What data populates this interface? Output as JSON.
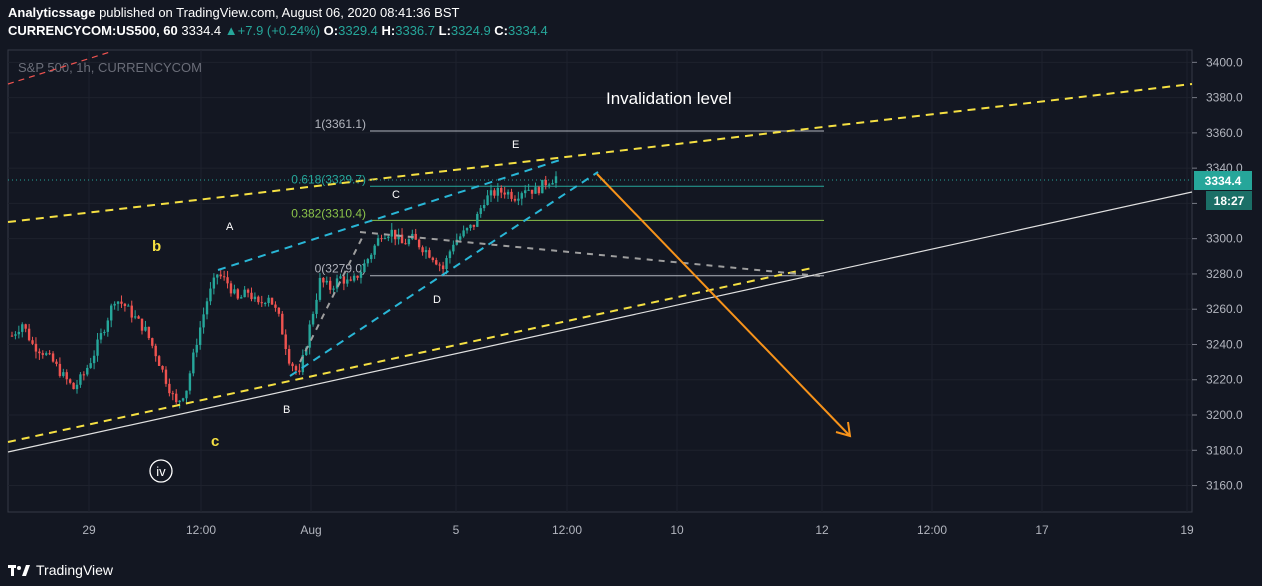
{
  "header": {
    "author": "Analyticssage",
    "published_text": "published on TradingView.com, August 06, 2020 08:41:36 BST",
    "symbol": "CURRENCYCOM:US500, 60",
    "last": "3334.4",
    "change": "+7.9 (+0.24%)",
    "o_label": "O:",
    "o_value": "3329.4",
    "h_label": "H:",
    "h_value": "3336.7",
    "l_label": "L:",
    "l_value": "3324.9",
    "c_label": "C:",
    "c_value": "3334.4"
  },
  "chart_data": {
    "type": "candlestick",
    "title": "S&P 500, 1h, CURRENCYCOM",
    "xlabel": "",
    "ylabel": "",
    "ylim": [
      3145,
      3407
    ],
    "y_ticks": [
      3160,
      3180,
      3200,
      3220,
      3240,
      3260,
      3280,
      3300,
      3320,
      3340,
      3360,
      3380,
      3400
    ],
    "y_tick_labels": [
      "3160.0",
      "3180.0",
      "3200.0",
      "3220.0",
      "3240.0",
      "3260.0",
      "3280.0",
      "3300.0",
      "3320.0",
      "3340.0",
      "3360.0",
      "3380.0",
      "3400.0"
    ],
    "x_tick_labels": [
      "29",
      "12:00",
      "Aug",
      "5",
      "12:00",
      "10",
      "12",
      "12:00",
      "17",
      "19"
    ],
    "price_label": "3334.4",
    "countdown_label": "18:27",
    "fib_levels": [
      {
        "label": "1(3361.1)",
        "value": 3361.1
      },
      {
        "label": "0.618(3329.7)",
        "value": 3329.7
      },
      {
        "label": "0.382(3310.4)",
        "value": 3310.4
      },
      {
        "label": "0(3279.0)",
        "value": 3279.0
      }
    ],
    "annotations": {
      "invalidation": "Invalidation level",
      "wave_A": "A",
      "wave_B": "B",
      "wave_C": "C",
      "wave_D": "D",
      "wave_E": "E",
      "wave_b": "b",
      "wave_c": "c",
      "wave_iv": "iv"
    },
    "path_points": [
      3245,
      3252,
      3240,
      3236,
      3230,
      3222,
      3215,
      3223,
      3235,
      3250,
      3266,
      3262,
      3255,
      3248,
      3235,
      3220,
      3206,
      3215,
      3242,
      3265,
      3280,
      3275,
      3265,
      3270,
      3262,
      3268,
      3255,
      3232,
      3222,
      3250,
      3276,
      3272,
      3278,
      3274,
      3282,
      3292,
      3303,
      3304,
      3297,
      3300,
      3295,
      3290,
      3283,
      3298,
      3303,
      3308,
      3322,
      3326,
      3327,
      3324,
      3329,
      3327,
      3332,
      3335
    ],
    "colors": {
      "background": "#131722",
      "up": "#26a69a",
      "down": "#ef5350",
      "yellow": "#f5e042",
      "cyan": "#29b6d6",
      "orange": "#f7931a",
      "white_line": "#e0e0e0",
      "grid": "#1e222d"
    }
  },
  "footer": {
    "brand": "TradingView",
    "logo_icon": "tradingview-logo-icon"
  }
}
